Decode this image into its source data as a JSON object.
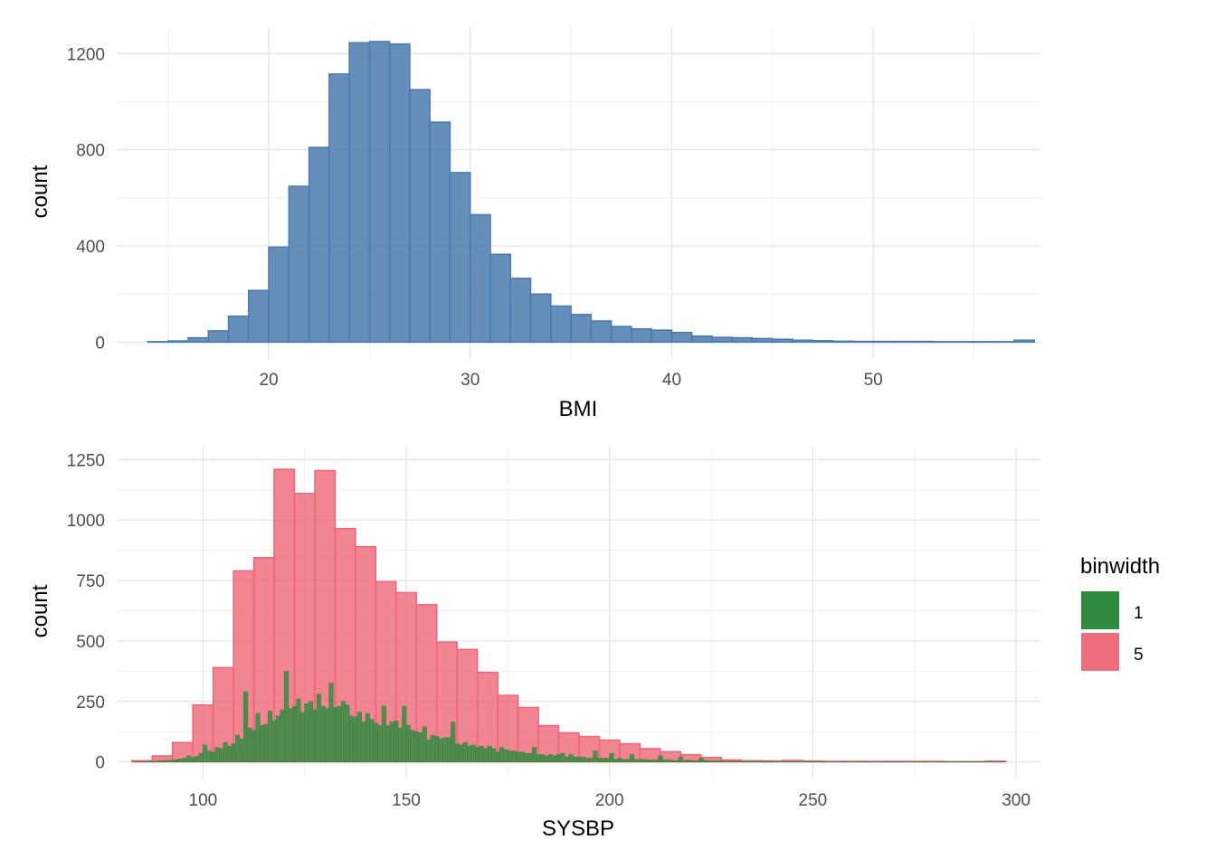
{
  "chart_data": [
    {
      "type": "histogram",
      "xlabel": "BMI",
      "ylabel": "count",
      "xlim": [
        12.5,
        58.3
      ],
      "ylim": [
        -70,
        1310
      ],
      "x_ticks": [
        20,
        30,
        40,
        50
      ],
      "y_ticks": [
        0,
        400,
        800,
        1200
      ],
      "grid": true,
      "series": [
        {
          "color": "#4a7aaf",
          "bin_width": 1,
          "bin_starts": [
            14,
            15,
            16,
            17,
            18,
            19,
            20,
            21,
            22,
            23,
            24,
            25,
            26,
            27,
            28,
            29,
            30,
            31,
            32,
            33,
            34,
            35,
            36,
            37,
            38,
            39,
            40,
            41,
            42,
            43,
            44,
            45,
            46,
            47,
            48,
            49,
            50,
            51,
            52,
            53,
            54,
            55,
            56,
            57
          ],
          "values": [
            2,
            5,
            18,
            47,
            108,
            215,
            395,
            648,
            810,
            1115,
            1245,
            1250,
            1240,
            1050,
            915,
            705,
            530,
            365,
            265,
            200,
            150,
            115,
            88,
            65,
            55,
            50,
            40,
            25,
            20,
            18,
            15,
            12,
            8,
            6,
            4,
            3,
            3,
            3,
            3,
            2,
            2,
            2,
            2,
            8
          ]
        }
      ]
    },
    {
      "type": "histogram",
      "xlabel": "SYSBP",
      "ylabel": "count",
      "xlim": [
        79,
        306
      ],
      "ylim": [
        -65,
        1300
      ],
      "x_ticks": [
        100,
        150,
        200,
        250,
        300
      ],
      "y_ticks": [
        0,
        250,
        500,
        750,
        1000,
        1250
      ],
      "grid": true,
      "legend_title": "binwidth",
      "legend_position": "right",
      "series": [
        {
          "name": "5",
          "color": "#ee6677",
          "bin_width": 5,
          "bin_starts": [
            82.5,
            87.5,
            92.5,
            97.5,
            102.5,
            107.5,
            112.5,
            117.5,
            122.5,
            127.5,
            132.5,
            137.5,
            142.5,
            147.5,
            152.5,
            157.5,
            162.5,
            167.5,
            172.5,
            177.5,
            182.5,
            187.5,
            192.5,
            197.5,
            202.5,
            207.5,
            212.5,
            217.5,
            222.5,
            227.5,
            232.5,
            237.5,
            242.5,
            247.5,
            252.5,
            257.5,
            262.5,
            267.5,
            272.5,
            277.5,
            282.5,
            287.5,
            292.5
          ],
          "values": [
            5,
            25,
            80,
            235,
            390,
            790,
            845,
            1210,
            1110,
            1205,
            965,
            890,
            745,
            700,
            650,
            495,
            465,
            370,
            275,
            225,
            150,
            120,
            105,
            90,
            75,
            55,
            42,
            30,
            18,
            8,
            5,
            4,
            6,
            3,
            2,
            2,
            2,
            2,
            2,
            2,
            1,
            1,
            3
          ]
        },
        {
          "name": "1",
          "color": "#2e8b3e",
          "bin_width": 1,
          "bin_starts": [
            83,
            84,
            85,
            86,
            87,
            88,
            89,
            90,
            91,
            92,
            93,
            94,
            95,
            96,
            97,
            98,
            99,
            100,
            101,
            102,
            103,
            104,
            105,
            106,
            107,
            108,
            109,
            110,
            111,
            112,
            113,
            114,
            115,
            116,
            117,
            118,
            119,
            120,
            121,
            122,
            123,
            124,
            125,
            126,
            127,
            128,
            129,
            130,
            131,
            132,
            133,
            134,
            135,
            136,
            137,
            138,
            139,
            140,
            141,
            142,
            143,
            144,
            145,
            146,
            147,
            148,
            149,
            150,
            151,
            152,
            153,
            154,
            155,
            156,
            157,
            158,
            159,
            160,
            161,
            162,
            163,
            164,
            165,
            166,
            167,
            168,
            169,
            170,
            171,
            172,
            173,
            174,
            175,
            176,
            177,
            178,
            179,
            180,
            181,
            182,
            183,
            184,
            185,
            186,
            187,
            188,
            189,
            190,
            191,
            192,
            193,
            194,
            195,
            196,
            197,
            198,
            199,
            200,
            201,
            202,
            203,
            204,
            205,
            206,
            207,
            208,
            209,
            210,
            211,
            212,
            213,
            214,
            215,
            216,
            217,
            218,
            219,
            220,
            221,
            222,
            223,
            224,
            225,
            226,
            227,
            228,
            229,
            230,
            231,
            232,
            233,
            234,
            235,
            236,
            237,
            238,
            239,
            240,
            241,
            242,
            243,
            244,
            245,
            246,
            247,
            248,
            249,
            250,
            251,
            252,
            253,
            254,
            255,
            256,
            257,
            258,
            259,
            260,
            261,
            262,
            263,
            264,
            265,
            266,
            267,
            268,
            269,
            270,
            271,
            272,
            273,
            274,
            275,
            276,
            277,
            278,
            279,
            280,
            281,
            282,
            283,
            284,
            285,
            286,
            287,
            288,
            289,
            290,
            291,
            292,
            293,
            294,
            295,
            296
          ],
          "values": [
            1,
            1,
            1,
            2,
            2,
            3,
            4,
            5,
            6,
            7,
            9,
            12,
            15,
            25,
            18,
            22,
            35,
            70,
            45,
            40,
            60,
            55,
            80,
            65,
            75,
            110,
            95,
            290,
            140,
            130,
            200,
            150,
            155,
            210,
            170,
            190,
            215,
            375,
            220,
            230,
            260,
            205,
            240,
            250,
            215,
            280,
            230,
            220,
            325,
            225,
            230,
            250,
            235,
            190,
            185,
            205,
            165,
            200,
            175,
            160,
            150,
            230,
            150,
            165,
            170,
            140,
            230,
            150,
            130,
            125,
            120,
            145,
            90,
            110,
            105,
            95,
            100,
            100,
            165,
            75,
            70,
            80,
            65,
            70,
            60,
            65,
            55,
            65,
            55,
            40,
            60,
            50,
            45,
            45,
            40,
            40,
            35,
            35,
            60,
            30,
            30,
            25,
            30,
            25,
            30,
            35,
            20,
            30,
            20,
            20,
            20,
            15,
            15,
            45,
            15,
            15,
            15,
            35,
            10,
            15,
            10,
            10,
            30,
            10,
            10,
            10,
            8,
            8,
            8,
            25,
            8,
            8,
            6,
            6,
            20,
            6,
            6,
            5,
            5,
            15,
            5,
            4,
            4,
            4,
            4,
            3,
            3,
            3,
            3,
            2,
            2,
            2,
            2,
            2,
            2,
            2,
            2,
            1,
            1,
            1,
            1,
            1,
            1,
            1,
            1,
            1,
            2,
            1,
            1,
            1,
            1,
            1,
            1,
            1,
            1,
            1,
            1,
            1,
            1,
            1,
            1,
            1,
            1,
            1,
            1,
            1,
            1,
            1,
            1,
            1,
            1,
            1,
            1,
            1,
            1,
            1,
            1,
            1,
            1,
            1,
            1,
            1,
            1,
            1,
            1,
            1,
            1,
            1,
            1,
            1,
            1,
            1,
            1,
            1,
            1,
            1,
            1,
            1,
            1,
            1
          ]
        }
      ]
    }
  ]
}
